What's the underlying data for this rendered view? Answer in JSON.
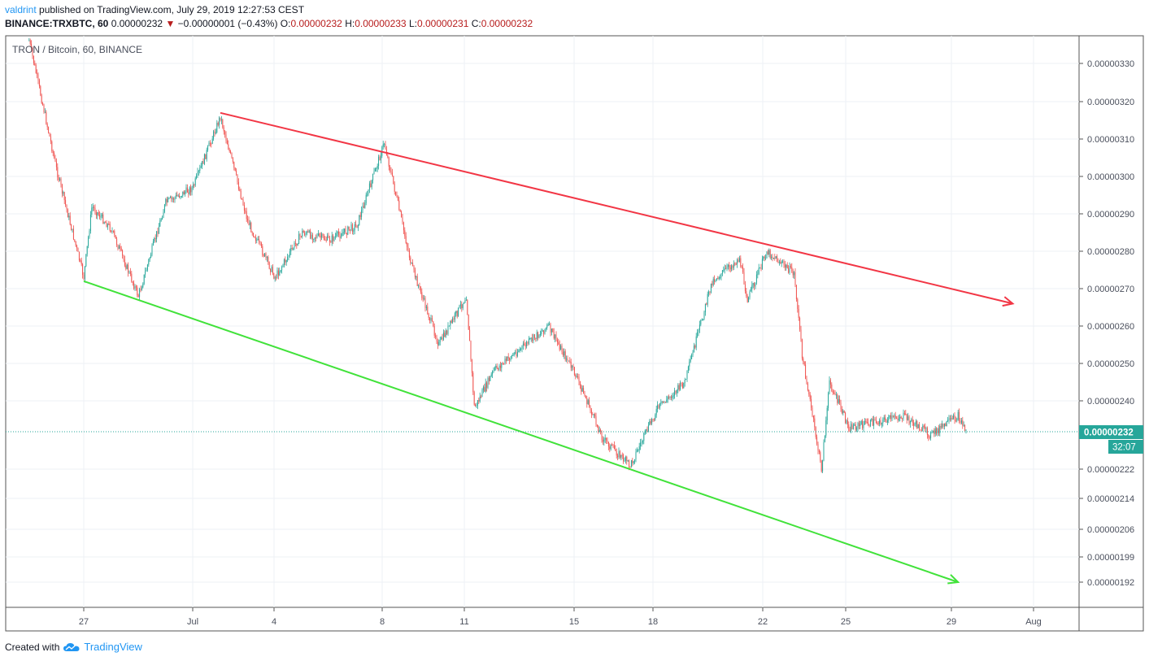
{
  "header": {
    "author": "valdrint",
    "published_text": "published on TradingView.com, July 29, 2019 12:27:53 CEST",
    "symbol": "BINANCE:TRXBTC, 60",
    "last": "0.00000232",
    "change": "−0.00000001 (−0.43%)",
    "o_label": "O:",
    "o": "0.00000232",
    "h_label": "H:",
    "h": "0.00000233",
    "l_label": "L:",
    "l": "0.00000231",
    "c_label": "C:",
    "c": "0.00000232"
  },
  "chart_title": "TRON / Bitcoin, 60, BINANCE",
  "footer": {
    "created_with": "Created with",
    "brand": "TradingView"
  },
  "colors": {
    "up": "#26a69a",
    "down": "#ef5350",
    "resistance": "#f23645",
    "support": "#41e23a",
    "grid": "#eef1f6",
    "price_tag": "#26a69a"
  },
  "price_tag": {
    "value": "0.00000232",
    "countdown": "32:07"
  },
  "chart_data": {
    "type": "candlestick",
    "title": "TRON / Bitcoin, 60, BINANCE",
    "x_tick_labels": [
      "27",
      "Jul",
      "4",
      "8",
      "11",
      "15",
      "18",
      "22",
      "25",
      "29",
      "Aug"
    ],
    "y_tick_labels": [
      "0.00000330",
      "0.00000320",
      "0.00000310",
      "0.00000300",
      "0.00000290",
      "0.00000280",
      "0.00000270",
      "0.00000260",
      "0.00000250",
      "0.00000240",
      "0.00000222",
      "0.00000214",
      "0.00000206",
      "0.00000199",
      "0.00000192"
    ],
    "last_price": 2.32e-06,
    "approx_close_path": [
      [
        "2019-06-25",
        3.36e-06
      ],
      [
        "2019-06-26",
        3.02e-06
      ],
      [
        "2019-06-27",
        2.73e-06
      ],
      [
        "2019-06-27",
        2.92e-06
      ],
      [
        "2019-06-28",
        2.86e-06
      ],
      [
        "2019-06-29",
        2.68e-06
      ],
      [
        "2019-06-30",
        2.93e-06
      ],
      [
        "2019-07-01",
        2.97e-06
      ],
      [
        "2019-07-02",
        3.16e-06
      ],
      [
        "2019-07-03",
        2.88e-06
      ],
      [
        "2019-07-04",
        2.73e-06
      ],
      [
        "2019-07-05",
        2.85e-06
      ],
      [
        "2019-07-06",
        2.83e-06
      ],
      [
        "2019-07-07",
        2.87e-06
      ],
      [
        "2019-07-08",
        3.09e-06
      ],
      [
        "2019-07-09",
        2.76e-06
      ],
      [
        "2019-07-10",
        2.55e-06
      ],
      [
        "2019-07-11",
        2.68e-06
      ],
      [
        "2019-07-11",
        2.38e-06
      ],
      [
        "2019-07-12",
        2.48e-06
      ],
      [
        "2019-07-14",
        2.6e-06
      ],
      [
        "2019-07-15",
        2.47e-06
      ],
      [
        "2019-07-16",
        2.3e-06
      ],
      [
        "2019-07-17",
        2.23e-06
      ],
      [
        "2019-07-18",
        2.38e-06
      ],
      [
        "2019-07-19",
        2.45e-06
      ],
      [
        "2019-07-20",
        2.72e-06
      ],
      [
        "2019-07-21",
        2.78e-06
      ],
      [
        "2019-07-21",
        2.67e-06
      ],
      [
        "2019-07-22",
        2.8e-06
      ],
      [
        "2019-07-23",
        2.74e-06
      ],
      [
        "2019-07-23",
        2.52e-06
      ],
      [
        "2019-07-24",
        2.22e-06
      ],
      [
        "2019-07-24",
        2.45e-06
      ],
      [
        "2019-07-25",
        2.33e-06
      ],
      [
        "2019-07-27",
        2.36e-06
      ],
      [
        "2019-07-28",
        2.31e-06
      ],
      [
        "2019-07-29",
        2.36e-06
      ],
      [
        "2019-07-29",
        2.32e-06
      ]
    ],
    "trendlines": [
      {
        "name": "resistance",
        "color": "#f23645",
        "from": [
          "2019-07-02",
          3.17e-06
        ],
        "to": [
          "2019-07-31",
          2.66e-06
        ]
      },
      {
        "name": "support",
        "color": "#41e23a",
        "from": [
          "2019-06-27",
          2.72e-06
        ],
        "to": [
          "2019-07-29",
          1.92e-06
        ]
      }
    ],
    "grid": true
  }
}
